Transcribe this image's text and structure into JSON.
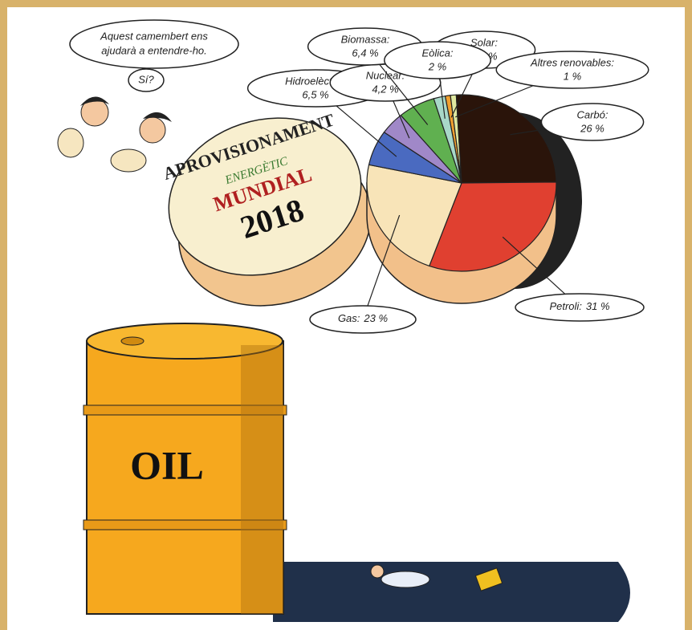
{
  "chart_data": {
    "type": "pie",
    "categories": [
      "Solar:",
      "Altres renovables:",
      "Carbó:",
      "Petroli:",
      "Gas:",
      "Hidroelèctric:",
      "Nuclear:",
      "Biomassa:",
      "Eòlica:"
    ],
    "values": [
      0.9,
      1,
      26,
      31,
      23,
      6.5,
      4.2,
      6.4,
      2
    ],
    "value_labels": [
      "0,9 %",
      "1 %",
      "26 %",
      "31 %",
      "23 %",
      "6,5 %",
      "4,2 %",
      "6,4 %",
      "2 %"
    ],
    "colors": [
      "#f0a030",
      "#dfe8a0",
      "#2a140a",
      "#e04030",
      "#f8e4b8",
      "#4a6ac0",
      "#a088c8",
      "#60b050",
      "#a8d8c8"
    ],
    "lid_lines": [
      "APROVISIONAMENT",
      "ENERGÈTIC",
      "MUNDIAL",
      "2018"
    ],
    "speech": [
      "Aquest camembert ens",
      "ajudarà a entendre-ho.",
      "Sí?"
    ],
    "barrel_label": "OIL"
  }
}
